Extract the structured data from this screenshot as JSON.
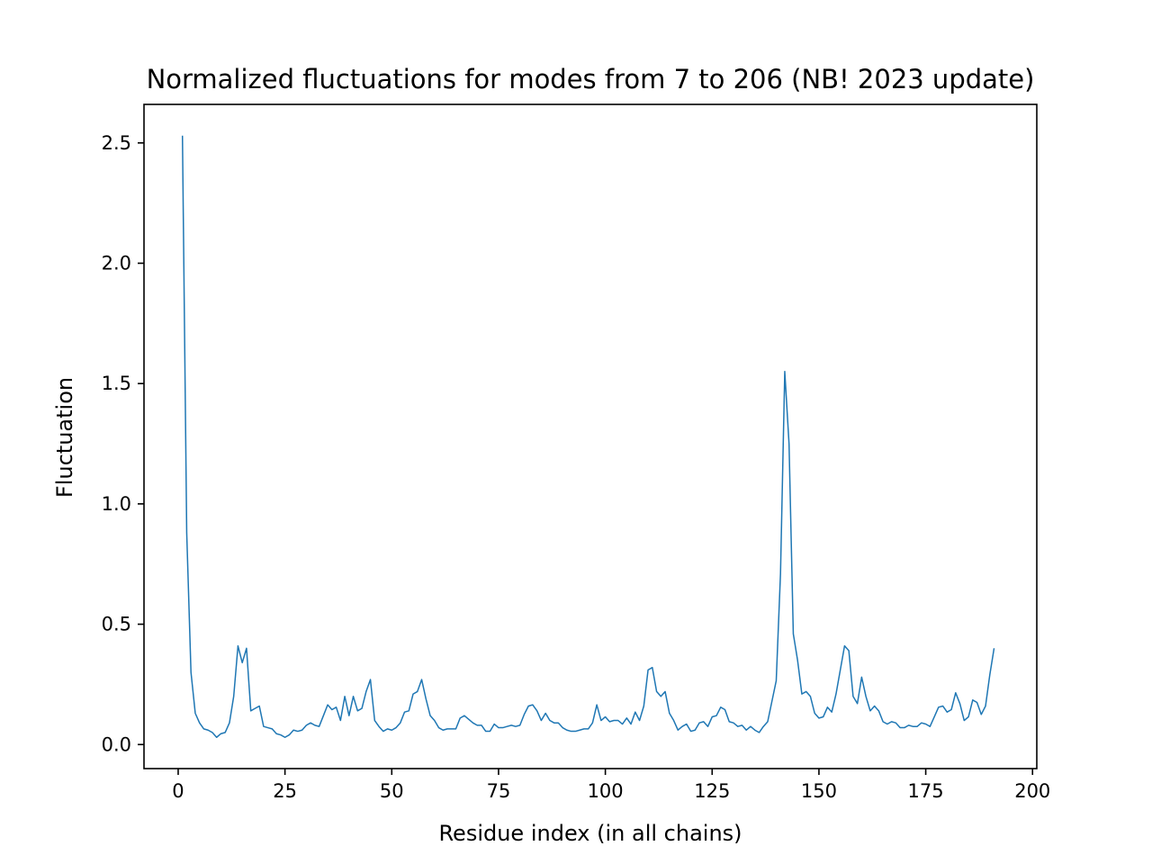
{
  "chart_data": {
    "type": "line",
    "title": "Normalized fluctuations for modes from 7 to 206 (NB! 2023 update)",
    "xlabel": "Residue index (in all chains)",
    "ylabel": "Fluctuation",
    "xlim": [
      -8,
      201
    ],
    "ylim": [
      -0.1,
      2.66
    ],
    "x_ticks": [
      0,
      25,
      50,
      75,
      100,
      125,
      150,
      175,
      200
    ],
    "x_tick_labels": [
      "0",
      "25",
      "50",
      "75",
      "100",
      "125",
      "150",
      "175",
      "200"
    ],
    "y_ticks": [
      0.0,
      0.5,
      1.0,
      1.5,
      2.0,
      2.5
    ],
    "y_tick_labels": [
      "0.0",
      "0.5",
      "1.0",
      "1.5",
      "2.0",
      "2.5"
    ],
    "grid": false,
    "series": [
      {
        "color": "#1f77b4",
        "x_start": 1,
        "x_step": 1,
        "values": [
          2.53,
          0.88,
          0.3,
          0.13,
          0.09,
          0.065,
          0.06,
          0.05,
          0.03,
          0.045,
          0.05,
          0.09,
          0.2,
          0.41,
          0.34,
          0.4,
          0.14,
          0.15,
          0.16,
          0.075,
          0.07,
          0.065,
          0.045,
          0.04,
          0.03,
          0.04,
          0.06,
          0.055,
          0.06,
          0.08,
          0.09,
          0.08,
          0.075,
          0.12,
          0.165,
          0.145,
          0.155,
          0.1,
          0.2,
          0.12,
          0.2,
          0.14,
          0.15,
          0.22,
          0.27,
          0.1,
          0.075,
          0.055,
          0.065,
          0.06,
          0.07,
          0.09,
          0.135,
          0.14,
          0.21,
          0.22,
          0.27,
          0.19,
          0.12,
          0.1,
          0.07,
          0.06,
          0.065,
          0.065,
          0.065,
          0.11,
          0.12,
          0.105,
          0.09,
          0.08,
          0.08,
          0.055,
          0.055,
          0.085,
          0.07,
          0.07,
          0.075,
          0.08,
          0.075,
          0.08,
          0.125,
          0.16,
          0.165,
          0.14,
          0.1,
          0.13,
          0.1,
          0.09,
          0.09,
          0.07,
          0.06,
          0.055,
          0.055,
          0.06,
          0.065,
          0.065,
          0.09,
          0.165,
          0.1,
          0.115,
          0.095,
          0.1,
          0.1,
          0.085,
          0.11,
          0.085,
          0.135,
          0.1,
          0.16,
          0.31,
          0.32,
          0.22,
          0.2,
          0.22,
          0.13,
          0.1,
          0.06,
          0.075,
          0.085,
          0.055,
          0.06,
          0.09,
          0.095,
          0.075,
          0.115,
          0.12,
          0.155,
          0.145,
          0.095,
          0.09,
          0.075,
          0.08,
          0.06,
          0.075,
          0.06,
          0.05,
          0.075,
          0.095,
          0.18,
          0.265,
          0.71,
          1.55,
          1.25,
          0.46,
          0.35,
          0.21,
          0.22,
          0.2,
          0.13,
          0.11,
          0.115,
          0.155,
          0.135,
          0.21,
          0.31,
          0.41,
          0.39,
          0.2,
          0.17,
          0.28,
          0.2,
          0.14,
          0.16,
          0.14,
          0.095,
          0.085,
          0.095,
          0.09,
          0.07,
          0.07,
          0.08,
          0.075,
          0.075,
          0.09,
          0.085,
          0.075,
          0.115,
          0.155,
          0.16,
          0.135,
          0.145,
          0.215,
          0.17,
          0.1,
          0.115,
          0.185,
          0.175,
          0.125,
          0.16,
          0.29,
          0.4
        ]
      }
    ]
  }
}
